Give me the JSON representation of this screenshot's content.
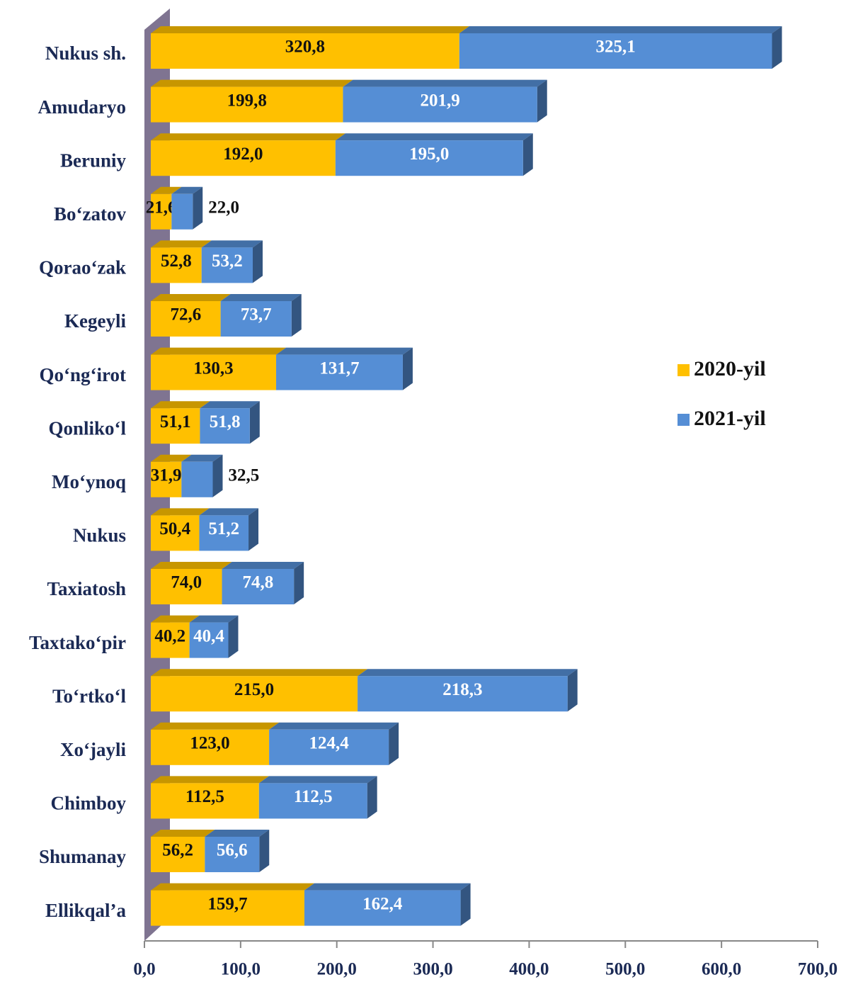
{
  "chart_data": {
    "type": "bar",
    "orientation": "horizontal",
    "stacked": true,
    "categories": [
      "Nukus sh.",
      "Amudaryo",
      "Beruniy",
      "Bo‘zatov",
      "Qorao‘zak",
      "Kegeyli",
      "Qo‘ng‘irot",
      "Qonliko‘l",
      "Mo‘ynoq",
      "Nukus",
      "Taxiatosh",
      "Taxtako‘pir",
      "To‘rtko‘l",
      "Xo‘jayli",
      "Chimboy",
      "Shumanay",
      "Ellikqal’a"
    ],
    "series": [
      {
        "name": "2020-yil",
        "color": "#ffc000",
        "values": [
          320.8,
          199.8,
          192.0,
          21.6,
          52.8,
          72.6,
          130.3,
          51.1,
          31.9,
          50.4,
          74.0,
          40.2,
          215.0,
          123.0,
          112.5,
          56.2,
          159.7
        ],
        "value_labels": [
          "320,8",
          "199,8",
          "192,0",
          "21,6",
          "52,8",
          "72,6",
          "130,3",
          "51,1",
          "31,9",
          "50,4",
          "74,0",
          "40,2",
          "215,0",
          "123,0",
          "112,5",
          "56,2",
          "159,7"
        ]
      },
      {
        "name": "2021-yil",
        "color": "#558ed5",
        "values": [
          325.1,
          201.9,
          195.0,
          22.0,
          53.2,
          73.7,
          131.7,
          51.8,
          32.5,
          51.2,
          74.8,
          40.4,
          218.3,
          124.4,
          112.5,
          56.6,
          162.4
        ],
        "value_labels": [
          "325,1",
          "201,9",
          "195,0",
          "22,0",
          "53,2",
          "73,7",
          "131,7",
          "51,8",
          "32,5",
          "51,2",
          "74,8",
          "40,4",
          "218,3",
          "124,4",
          "112,5",
          "56,6",
          "162,4"
        ]
      }
    ],
    "xlim": [
      0,
      700
    ],
    "xticks": [
      {
        "value": 0,
        "label": "0,0"
      },
      {
        "value": 100,
        "label": "100,0"
      },
      {
        "value": 200,
        "label": "200,0"
      },
      {
        "value": 300,
        "label": "300,0"
      },
      {
        "value": 400,
        "label": "400,0"
      },
      {
        "value": 500,
        "label": "500,0"
      },
      {
        "value": 600,
        "label": "600,0"
      },
      {
        "value": 700,
        "label": "700,0"
      }
    ],
    "legend": "right"
  }
}
